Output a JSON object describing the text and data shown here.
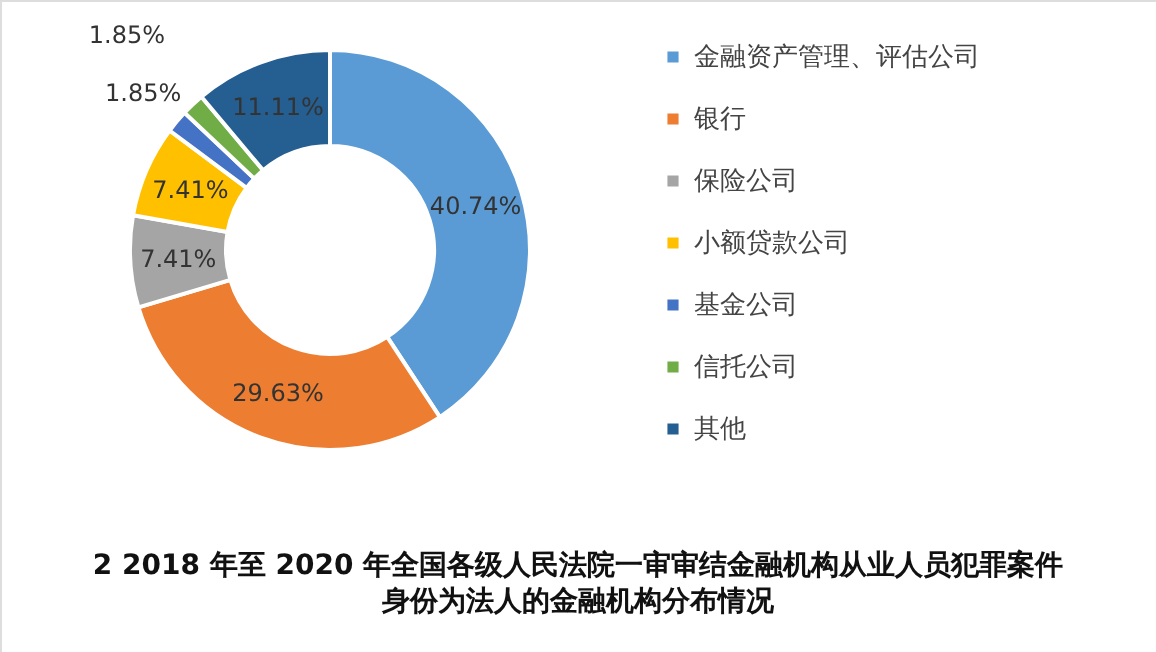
{
  "chart_data": {
    "type": "donut",
    "title": "2 2018 年至 2020 年全国各级人民法院一审审结金融机构从业人员犯罪案件身份为法人的金融机构分布情况",
    "categories": [
      "金融资产管理、评估公司",
      "银行",
      "保险公司",
      "小额贷款公司",
      "基金公司",
      "信托公司",
      "其他"
    ],
    "values": [
      40.74,
      29.63,
      7.41,
      7.41,
      1.85,
      1.85,
      11.11
    ],
    "value_labels": [
      "40.74%",
      "29.63%",
      "7.41%",
      "7.41%",
      "1.85%",
      "1.85%",
      "11.11%"
    ],
    "colors": [
      "#5b9bd5",
      "#ed7d31",
      "#a5a5a5",
      "#ffc000",
      "#4472c4",
      "#70ad47",
      "#255e91"
    ],
    "legend": "right"
  }
}
